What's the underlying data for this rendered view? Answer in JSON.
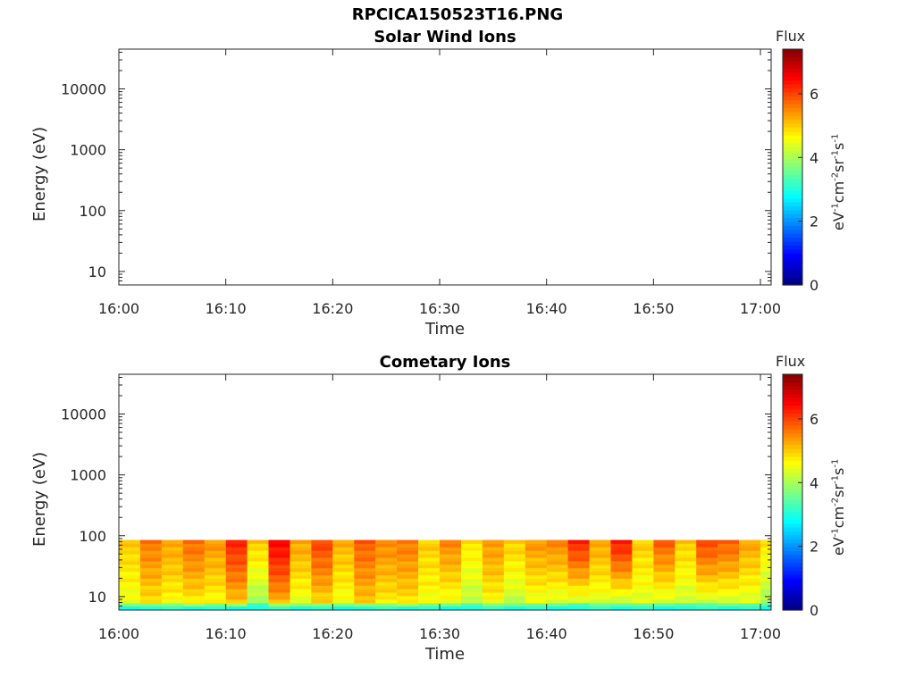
{
  "figure": {
    "title": "RPCICA150523T16.PNG"
  },
  "colorbar": {
    "title": "Flux",
    "unit_parts": [
      "eV",
      "-1",
      "cm",
      "-2",
      "sr",
      "-1",
      "s",
      "-1"
    ],
    "ticks": [
      "0",
      "2",
      "4",
      "6"
    ],
    "range": [
      0,
      7.4
    ],
    "colormap": "jet"
  },
  "chart_data": [
    {
      "type": "heatmap",
      "title": "Solar Wind Ions",
      "xlabel": "Time",
      "ylabel": "Energy (eV)",
      "xticks": [
        "16:00",
        "16:10",
        "16:20",
        "16:30",
        "16:40",
        "16:50",
        "17:00"
      ],
      "yticks": [
        "10",
        "100",
        "1000",
        "10000"
      ],
      "yscale": "log",
      "xlim": [
        "16:00",
        "17:01"
      ],
      "ylim": [
        6,
        45000
      ],
      "grid": false,
      "data": "none"
    },
    {
      "type": "heatmap",
      "title": "Cometary Ions",
      "xlabel": "Time",
      "ylabel": "Energy (eV)",
      "xticks": [
        "16:00",
        "16:10",
        "16:20",
        "16:30",
        "16:40",
        "16:50",
        "17:00"
      ],
      "yticks": [
        "10",
        "100",
        "1000",
        "10000"
      ],
      "yscale": "log",
      "xlim": [
        "16:00",
        "17:01"
      ],
      "ylim": [
        6,
        45000
      ],
      "grid": false,
      "energy_bins": [
        6.5,
        7.4,
        8.4,
        9.6,
        11,
        12.5,
        14.3,
        16.3,
        18.6,
        21.2,
        24.2,
        27.6,
        31.5,
        35.9,
        41,
        46.8,
        53.4,
        61,
        69.6,
        79.5
      ],
      "column_times": [
        "16:00",
        "16:02",
        "16:04",
        "16:06",
        "16:08",
        "16:10",
        "16:12",
        "16:14",
        "16:16",
        "16:18",
        "16:20",
        "16:22",
        "16:24",
        "16:26",
        "16:28",
        "16:30",
        "16:32",
        "16:34",
        "16:36",
        "16:38",
        "16:40",
        "16:42",
        "16:44",
        "16:46",
        "16:48",
        "16:50",
        "16:52",
        "16:54",
        "16:56",
        "16:58",
        "17:00"
      ],
      "column_peak_flux": [
        5.0,
        5.6,
        5.3,
        5.7,
        5.4,
        6.2,
        5.0,
        6.5,
        5.3,
        6.0,
        5.2,
        5.8,
        5.5,
        5.6,
        5.0,
        5.5,
        4.8,
        5.4,
        5.0,
        5.4,
        5.5,
        6.2,
        5.3,
        6.3,
        5.0,
        5.8,
        5.0,
        6.0,
        5.8,
        5.3,
        4.8
      ],
      "column_low_flux": [
        4.3,
        4.6,
        4.4,
        4.5,
        4.4,
        4.7,
        3.6,
        4.8,
        4.2,
        4.6,
        4.3,
        4.8,
        4.5,
        4.6,
        4.4,
        4.2,
        3.9,
        4.4,
        3.9,
        4.2,
        4.0,
        3.8,
        4.1,
        3.7,
        4.2,
        3.9,
        4.0,
        3.8,
        3.9,
        4.1,
        3.7
      ],
      "floor_flux": 3.0
    }
  ]
}
